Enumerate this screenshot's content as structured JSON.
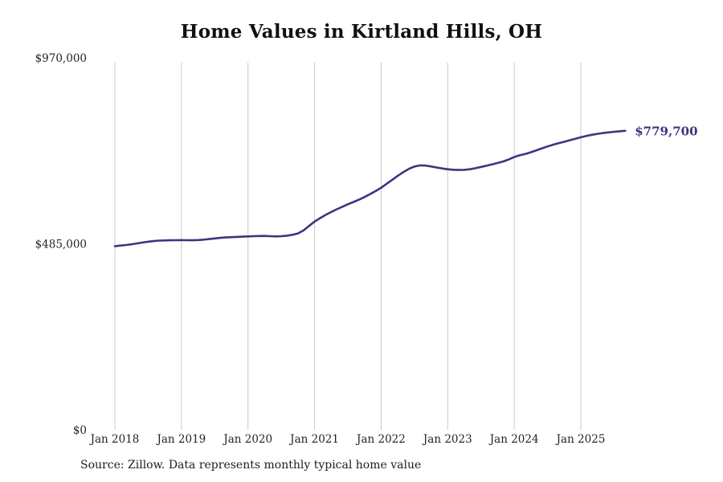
{
  "chart_data": {
    "type": "line",
    "title": "Home Values in Kirtland Hills, OH",
    "source_note": "Source: Zillow. Data represents monthly typical home value",
    "x_start": "2018-01",
    "x_interval": "monthly",
    "x_ticks": [
      "Jan 2018",
      "Jan 2019",
      "Jan 2020",
      "Jan 2021",
      "Jan 2022",
      "Jan 2023",
      "Jan 2024",
      "Jan 2025"
    ],
    "y_ticks": [
      {
        "label": "$0",
        "value": 0
      },
      {
        "label": "$485,000",
        "value": 485000
      },
      {
        "label": "$970,000",
        "value": 970000
      }
    ],
    "ylim": [
      0,
      970000
    ],
    "grid": "vertical-only",
    "legend": "none",
    "line_color": "#3d3580",
    "grid_color": "#c9c9c9",
    "end_label": "$779,700",
    "series": [
      {
        "name": "Typical home value",
        "values": [
          478900,
          480300,
          481900,
          483700,
          486000,
          488300,
          490500,
          492200,
          493300,
          493900,
          494200,
          494400,
          494600,
          494400,
          494300,
          494800,
          495900,
          497400,
          499000,
          500400,
          501500,
          502400,
          503100,
          503700,
          504200,
          504800,
          505300,
          505500,
          505000,
          504300,
          504800,
          506200,
          508500,
          512000,
          520000,
          531500,
          543000,
          552000,
          560500,
          568000,
          575000,
          581500,
          588000,
          594000,
          600000,
          607000,
          614500,
          622500,
          631000,
          641500,
          652000,
          662500,
          672000,
          680500,
          686500,
          689400,
          689000,
          686800,
          684000,
          681500,
          679500,
          678200,
          677500,
          677900,
          679500,
          682200,
          685400,
          688700,
          692100,
          695700,
          699800,
          705000,
          711500,
          715800,
          719500,
          723800,
          728800,
          734000,
          739000,
          743500,
          747300,
          751000,
          755000,
          759000,
          762800,
          766300,
          769400,
          771900,
          773900,
          775600,
          777100,
          778500,
          779700
        ]
      }
    ]
  }
}
